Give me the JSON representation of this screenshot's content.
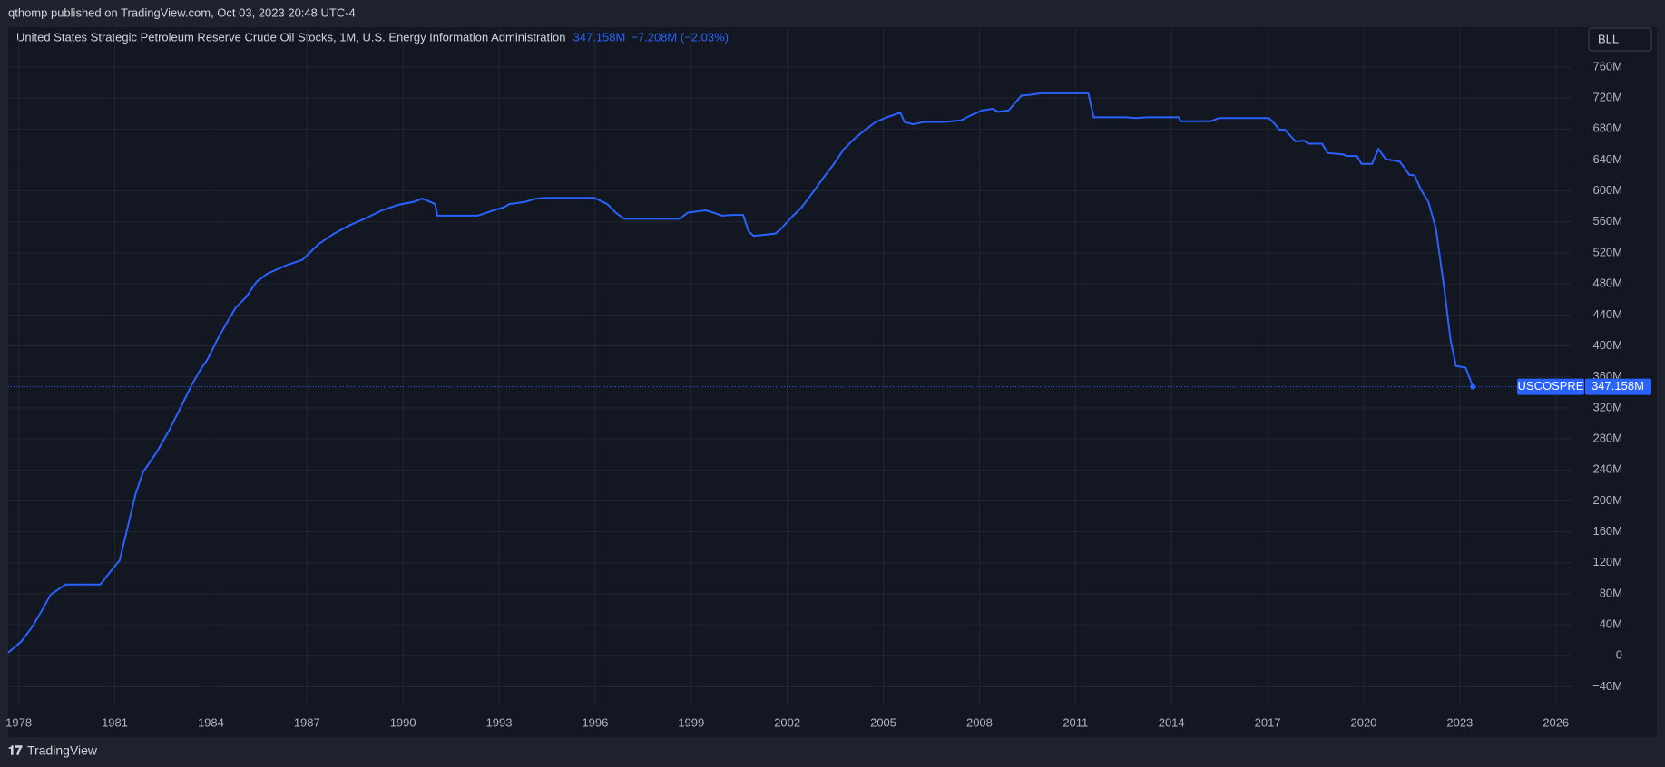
{
  "header": {
    "byline": "qthomp published on TradingView.com, Oct 03, 2023 20:48 UTC-4",
    "button": "BLL",
    "footer": "TradingView"
  },
  "chart_data": {
    "type": "line",
    "title": "United States Strategic Petroleum Reserve Crude Oil Stocks, 1M, U.S. Energy Information Administration",
    "last_label": "347.158M",
    "change": "−7.208M (−2.03%)",
    "symbol": "USCOSPRE",
    "grid": true,
    "color": "#2962ff",
    "xlim": [
      1977.67,
      2026.49
    ],
    "ylim": [
      -64,
      809
    ],
    "xticks": [
      1978,
      1981,
      1984,
      1987,
      1990,
      1993,
      1996,
      1999,
      2002,
      2005,
      2008,
      2011,
      2014,
      2017,
      2020,
      2023,
      2026
    ],
    "yticks": [
      {
        "value": -40,
        "label": "−40M"
      },
      0,
      {
        "value": 40,
        "label": "40M"
      },
      {
        "value": 80,
        "label": "80M"
      },
      {
        "value": 120,
        "label": "120M"
      },
      {
        "value": 160,
        "label": "160M"
      },
      {
        "value": 200,
        "label": "200M"
      },
      {
        "value": 240,
        "label": "240M"
      },
      {
        "value": 280,
        "label": "280M"
      },
      {
        "value": 320,
        "label": "320M"
      },
      {
        "value": 360,
        "label": "360M"
      },
      {
        "value": 400,
        "label": "400M"
      },
      {
        "value": 440,
        "label": "440M"
      },
      {
        "value": 480,
        "label": "480M"
      },
      {
        "value": 520,
        "label": "520M"
      },
      {
        "value": 560,
        "label": "560M"
      },
      {
        "value": 600,
        "label": "600M"
      },
      {
        "value": 640,
        "label": "640M"
      },
      {
        "value": 680,
        "label": "680M"
      },
      {
        "value": 720,
        "label": "720M"
      },
      {
        "value": 760,
        "label": "760M"
      }
    ],
    "x": [
      1977.67,
      1978.07,
      1978.4,
      1978.73,
      1979.0,
      1979.46,
      1980.55,
      1980.89,
      1981.15,
      1981.38,
      1981.65,
      1981.88,
      1982.31,
      1982.71,
      1983.04,
      1983.37,
      1983.64,
      1983.9,
      1984.2,
      1984.47,
      1984.77,
      1985.1,
      1985.43,
      1985.76,
      1986.36,
      1986.86,
      1987.35,
      1987.85,
      1988.35,
      1988.85,
      1989.34,
      1989.84,
      1990.34,
      1990.6,
      1990.84,
      1991.0,
      1991.07,
      1992.33,
      1992.83,
      1993.16,
      1993.32,
      1993.82,
      1994.15,
      1994.49,
      1995.98,
      1996.38,
      1996.64,
      1996.91,
      1998.63,
      1998.9,
      1999.46,
      1999.69,
      1999.96,
      2000.29,
      2000.62,
      2000.79,
      2000.95,
      2001.62,
      2001.78,
      2002.11,
      2002.45,
      2002.78,
      2003.11,
      2003.44,
      2003.77,
      2004.11,
      2004.44,
      2004.77,
      2005.1,
      2005.53,
      2005.66,
      2005.93,
      2006.26,
      2006.92,
      2007.42,
      2007.75,
      2008.09,
      2008.42,
      2008.58,
      2008.91,
      2009.08,
      2009.31,
      2009.58,
      2009.91,
      2011.4,
      2011.57,
      2012.56,
      2012.89,
      2013.23,
      2014.22,
      2014.29,
      2015.22,
      2015.48,
      2017.04,
      2017.21,
      2017.37,
      2017.54,
      2017.87,
      2018.14,
      2018.27,
      2018.7,
      2018.87,
      2019.36,
      2019.46,
      2019.79,
      2019.93,
      2020.26,
      2020.46,
      2020.69,
      2021.12,
      2021.25,
      2021.42,
      2021.59,
      2021.78,
      2022.02,
      2022.25,
      2022.51,
      2022.71,
      2022.88,
      2023.18,
      2023.41
    ],
    "values": [
      4,
      18,
      36,
      59,
      79,
      92,
      92,
      110,
      123,
      162,
      209,
      237,
      263,
      292,
      319,
      347,
      367,
      383,
      408,
      428,
      449,
      463,
      483,
      493,
      504,
      511,
      531,
      545,
      556,
      565,
      575,
      582,
      586,
      590,
      586,
      583,
      568,
      568,
      575,
      579,
      583,
      586,
      590,
      591,
      591,
      583,
      572,
      564,
      564,
      572,
      575,
      572,
      568,
      569,
      569,
      548,
      542,
      545,
      550,
      565,
      579,
      597,
      616,
      634,
      654,
      668,
      679,
      689,
      695,
      701,
      689,
      686,
      689,
      689,
      691,
      698,
      704,
      706,
      702,
      704,
      712,
      723,
      724,
      726,
      726,
      695,
      695,
      694,
      695,
      695,
      690,
      690,
      694,
      694,
      687,
      679,
      679,
      664,
      665,
      661,
      661,
      649,
      647,
      645,
      645,
      635,
      635,
      654,
      641,
      638,
      631,
      621,
      620,
      602,
      586,
      552,
      476,
      408,
      374,
      372,
      347.158
    ]
  }
}
